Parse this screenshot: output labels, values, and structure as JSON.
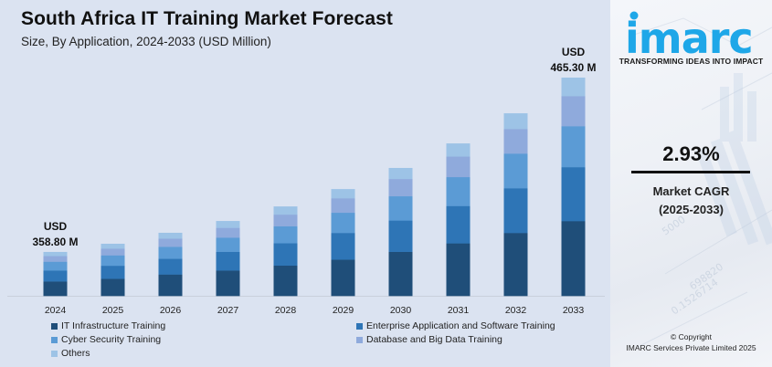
{
  "header": {
    "title": "South Africa IT Training Market Forecast",
    "subtitle": "Size, By Application, 2024-2033 (USD Million)"
  },
  "chart_data": {
    "type": "bar",
    "stacked": true,
    "title": "South Africa IT Training Market Forecast",
    "subtitle": "Size, By Application, 2024-2033 (USD Million)",
    "xlabel": "",
    "ylabel": "USD Million",
    "categories": [
      "2024",
      "2025",
      "2026",
      "2027",
      "2028",
      "2029",
      "2030",
      "2031",
      "2032",
      "2033"
    ],
    "totals": [
      358.8,
      363.8,
      370.5,
      377.7,
      386.6,
      397.2,
      410.1,
      425.1,
      443.5,
      465.3
    ],
    "axis_min": 332,
    "grid": false,
    "legend_position": "bottom",
    "series": [
      {
        "name": "IT Infrastructure Training",
        "color": "#1f4e79",
        "shares": [
          0.33,
          0.33,
          0.34,
          0.34,
          0.34,
          0.34,
          0.345,
          0.345,
          0.345,
          0.343
        ]
      },
      {
        "name": "Enterprise Application and Software Training",
        "color": "#2e75b6",
        "shares": [
          0.25,
          0.25,
          0.25,
          0.25,
          0.25,
          0.25,
          0.245,
          0.245,
          0.245,
          0.247
        ]
      },
      {
        "name": "Cyber Security Training",
        "color": "#5b9bd5",
        "shares": [
          0.2,
          0.2,
          0.19,
          0.19,
          0.19,
          0.19,
          0.19,
          0.19,
          0.19,
          0.188
        ]
      },
      {
        "name": "Database and Big Data Training",
        "color": "#8faadc",
        "shares": [
          0.13,
          0.13,
          0.13,
          0.13,
          0.13,
          0.135,
          0.135,
          0.135,
          0.135,
          0.138
        ]
      },
      {
        "name": "Others",
        "color": "#9dc3e6",
        "shares": [
          0.09,
          0.09,
          0.09,
          0.09,
          0.09,
          0.085,
          0.085,
          0.085,
          0.085,
          0.084
        ]
      }
    ],
    "annotations": [
      {
        "category": "2024",
        "line1": "USD",
        "line2": "358.80 M"
      },
      {
        "category": "2033",
        "line1": "USD",
        "line2": "465.30 M"
      }
    ]
  },
  "sidebar": {
    "brand": "imarc",
    "tagline": "TRANSFORMING IDEAS INTO IMPACT",
    "brand_color": "#1ea7e8",
    "cagr_value": "2.93%",
    "cagr_label": "Market CAGR",
    "cagr_period": "(2025-2033)",
    "copyright_line1": "© Copyright",
    "copyright_line2": "IMARC Services Private Limited 2025"
  }
}
